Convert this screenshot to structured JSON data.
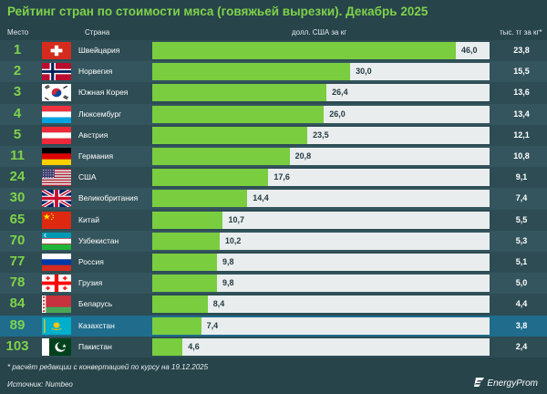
{
  "chart_data": {
    "type": "bar",
    "title": "Рейтинг стран по стоимости мяса (говяжьей вырезки). Декабрь 2025",
    "columns": {
      "rank": "Место",
      "country": "Страна",
      "usd": "долл. США за кг",
      "kzt": "тыс. тг за кг*"
    },
    "xlim": [
      0,
      46
    ],
    "rows": [
      {
        "rank": "1",
        "country": "Швейцария",
        "flag": "switzerland-flag",
        "value": 46.0,
        "label": "46,0",
        "kzt": "23,8"
      },
      {
        "rank": "2",
        "country": "Норвегия",
        "flag": "norway-flag",
        "value": 30.0,
        "label": "30,0",
        "kzt": "15,5"
      },
      {
        "rank": "3",
        "country": "Южная Корея",
        "flag": "south-korea-flag",
        "value": 26.4,
        "label": "26,4",
        "kzt": "13,6"
      },
      {
        "rank": "4",
        "country": "Люксембург",
        "flag": "luxembourg-flag",
        "value": 26.0,
        "label": "26,0",
        "kzt": "13,4"
      },
      {
        "rank": "5",
        "country": "Австрия",
        "flag": "austria-flag",
        "value": 23.5,
        "label": "23,5",
        "kzt": "12,1"
      },
      {
        "rank": "11",
        "country": "Германия",
        "flag": "germany-flag",
        "value": 20.8,
        "label": "20,8",
        "kzt": "10,8"
      },
      {
        "rank": "24",
        "country": "США",
        "flag": "usa-flag",
        "value": 17.6,
        "label": "17,6",
        "kzt": "9,1"
      },
      {
        "rank": "30",
        "country": "Великобритания",
        "flag": "uk-flag",
        "value": 14.4,
        "label": "14,4",
        "kzt": "7,4"
      },
      {
        "rank": "65",
        "country": "Китай",
        "flag": "china-flag",
        "value": 10.7,
        "label": "10,7",
        "kzt": "5,5"
      },
      {
        "rank": "70",
        "country": "Узбекистан",
        "flag": "uzbekistan-flag",
        "value": 10.2,
        "label": "10,2",
        "kzt": "5,3"
      },
      {
        "rank": "77",
        "country": "Россия",
        "flag": "russia-flag",
        "value": 9.8,
        "label": "9,8",
        "kzt": "5,1"
      },
      {
        "rank": "78",
        "country": "Грузия",
        "flag": "georgia-flag",
        "value": 9.8,
        "label": "9,8",
        "kzt": "5,0"
      },
      {
        "rank": "84",
        "country": "Беларусь",
        "flag": "belarus-flag",
        "value": 8.4,
        "label": "8,4",
        "kzt": "4,4"
      },
      {
        "rank": "89",
        "country": "Казахстан",
        "flag": "kazakhstan-flag",
        "value": 7.4,
        "label": "7,4",
        "kzt": "3,8",
        "highlight": true
      },
      {
        "rank": "103",
        "country": "Пакистан",
        "flag": "pakistan-flag",
        "value": 4.6,
        "label": "4,6",
        "kzt": "2,4"
      }
    ]
  },
  "footnote": "* расчёт редакции с конвертацией по курсу на 19.12.2025",
  "source": "Источник: Numbeo",
  "brand": "EnergyProm",
  "colors": {
    "accent": "#7fd24a",
    "bar": "#79cd3f",
    "highlight_row": "#1f6c8c"
  }
}
